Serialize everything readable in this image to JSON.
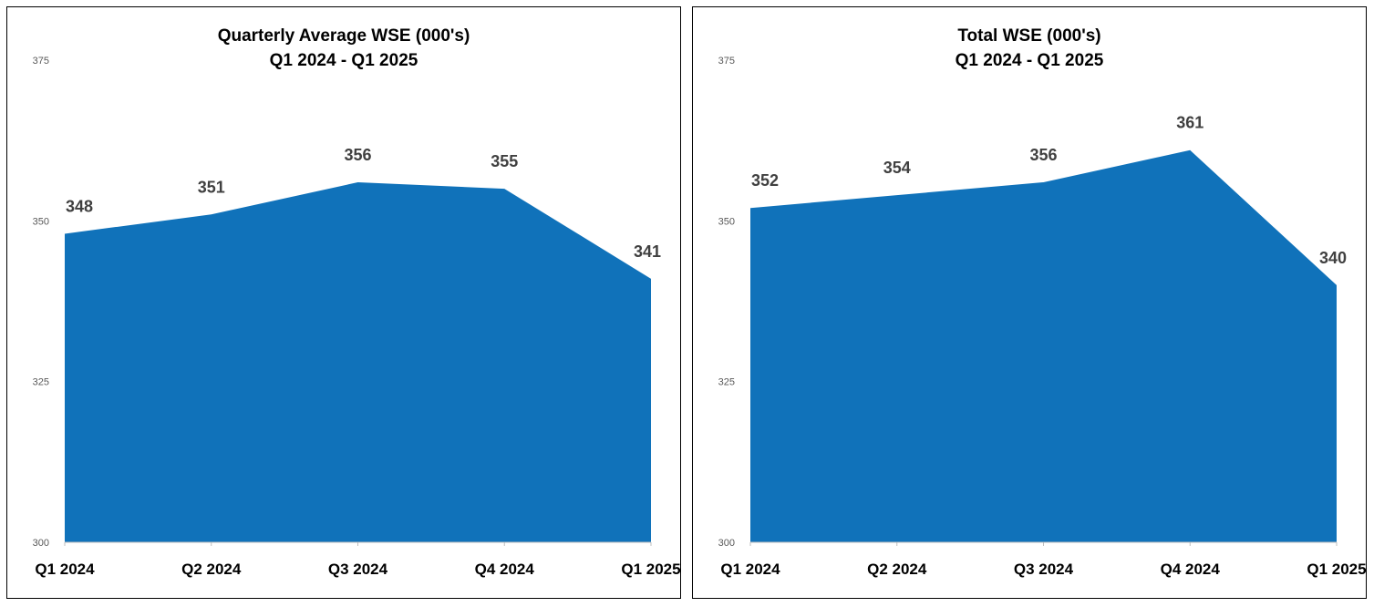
{
  "page": {
    "background": "#ffffff"
  },
  "chart_data": [
    {
      "type": "area",
      "title": "Quarterly Average WSE (000's)",
      "subtitle": "Q1 2024 - Q1 2025",
      "categories": [
        "Q1 2024",
        "Q2 2024",
        "Q3 2024",
        "Q4 2024",
        "Q1 2025"
      ],
      "values": [
        348,
        351,
        356,
        355,
        341
      ],
      "ylim": [
        300,
        375
      ],
      "yticks": [
        375,
        350,
        325,
        300
      ],
      "grid": false,
      "legend": "none",
      "colors": {
        "fill": "#1072BA",
        "data_label": "#404040",
        "tick_label": "#595959",
        "axis_line": "#BFBFBF",
        "category_label": "#000000"
      }
    },
    {
      "type": "area",
      "title": "Total WSE (000's)",
      "subtitle": "Q1 2024 - Q1 2025",
      "categories": [
        "Q1 2024",
        "Q2 2024",
        "Q3 2024",
        "Q4 2024",
        "Q1 2025"
      ],
      "values": [
        352,
        354,
        356,
        361,
        340
      ],
      "ylim": [
        300,
        375
      ],
      "yticks": [
        375,
        350,
        325,
        300
      ],
      "grid": false,
      "legend": "none",
      "colors": {
        "fill": "#1072BA",
        "data_label": "#404040",
        "tick_label": "#595959",
        "axis_line": "#BFBFBF",
        "category_label": "#000000"
      }
    }
  ]
}
